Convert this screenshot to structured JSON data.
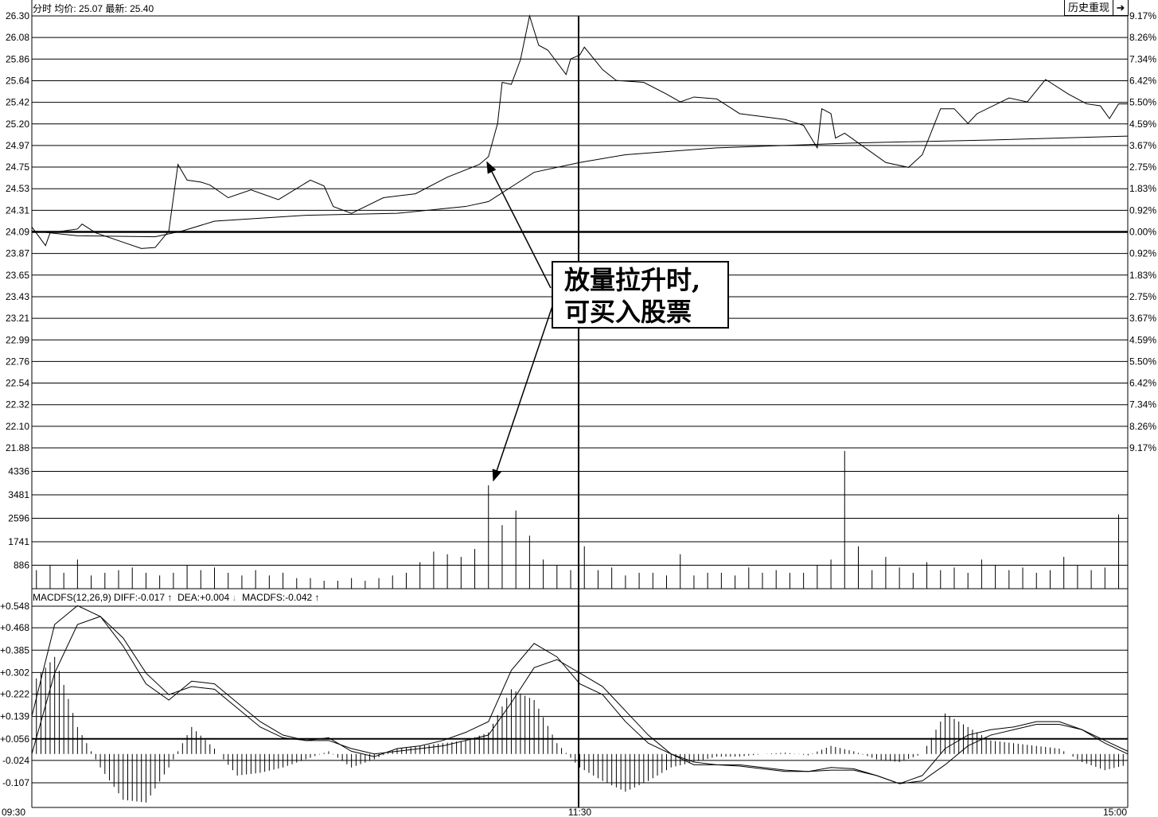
{
  "header": {
    "mode": "分时",
    "avg_label": "均价:",
    "avg_value": "25.07",
    "last_label": "最新:",
    "last_value": "25.40"
  },
  "buttons": {
    "history_replay": "历史重现",
    "exit_icon": "arrow-right-to-bar-icon"
  },
  "macd_header": {
    "name": "MACDFS(12,26,9)",
    "diff_label": "DIFF:",
    "diff_value": "-0.017",
    "diff_arrow": "↑",
    "dea_label": "DEA:",
    "dea_value": "+0.004",
    "dea_arrow": "↓",
    "macdfs_label": "MACDFS:",
    "macdfs_value": "-0.042",
    "macdfs_arrow": "↑"
  },
  "annotation": {
    "line1": "放量拉升时,",
    "line2": "可买入股票"
  },
  "chart_data": [
    {
      "type": "line",
      "panel": "price",
      "prev_close": 24.09,
      "ylim": [
        21.88,
        26.3
      ],
      "y_ticks": [
        "26.30",
        "26.08",
        "25.86",
        "25.64",
        "25.42",
        "25.20",
        "24.97",
        "24.75",
        "24.53",
        "24.31",
        "24.09",
        "23.87",
        "23.65",
        "23.43",
        "23.21",
        "22.99",
        "22.76",
        "22.54",
        "22.32",
        "22.10",
        "21.88"
      ],
      "pct_ticks": [
        "9.17%",
        "8.26%",
        "7.34%",
        "6.42%",
        "5.50%",
        "4.59%",
        "3.67%",
        "2.75%",
        "1.83%",
        "0.92%",
        "0.00%",
        "0.92%",
        "1.83%",
        "2.75%",
        "3.67%",
        "4.59%",
        "5.50%",
        "6.42%",
        "7.34%",
        "8.26%",
        "9.17%"
      ],
      "x_ticks": [
        "09:30",
        "11:30",
        "15:00"
      ],
      "price": [
        [
          "09:30",
          24.14
        ],
        [
          "09:33",
          23.95
        ],
        [
          "09:34",
          24.08
        ],
        [
          "09:40",
          24.12
        ],
        [
          "09:41",
          24.17
        ],
        [
          "09:44",
          24.08
        ],
        [
          "09:49",
          24.0
        ],
        [
          "09:54",
          23.92
        ],
        [
          "09:57",
          23.93
        ],
        [
          "10:00",
          24.1
        ],
        [
          "10:02",
          24.78
        ],
        [
          "10:04",
          24.62
        ],
        [
          "10:07",
          24.6
        ],
        [
          "10:09",
          24.57
        ],
        [
          "10:13",
          24.44
        ],
        [
          "10:18",
          24.52
        ],
        [
          "10:24",
          24.42
        ],
        [
          "10:31",
          24.62
        ],
        [
          "10:34",
          24.56
        ],
        [
          "10:36",
          24.35
        ],
        [
          "10:40",
          24.28
        ],
        [
          "10:47",
          24.44
        ],
        [
          "10:54",
          24.48
        ],
        [
          "11:01",
          24.65
        ],
        [
          "11:08",
          24.78
        ],
        [
          "11:10",
          24.86
        ],
        [
          "11:12",
          25.2
        ],
        [
          "11:13",
          25.62
        ],
        [
          "11:15",
          25.6
        ],
        [
          "11:17",
          25.85
        ],
        [
          "11:19",
          26.3
        ],
        [
          "11:21",
          26.0
        ],
        [
          "11:23",
          25.95
        ],
        [
          "11:27",
          25.7
        ],
        [
          "11:28",
          25.86
        ],
        [
          "11:30",
          25.9
        ],
        [
          "13:01",
          25.98
        ],
        [
          "13:05",
          25.75
        ],
        [
          "13:08",
          25.64
        ],
        [
          "13:14",
          25.62
        ],
        [
          "13:19",
          25.5
        ],
        [
          "13:22",
          25.42
        ],
        [
          "13:25",
          25.47
        ],
        [
          "13:30",
          25.45
        ],
        [
          "13:35",
          25.3
        ],
        [
          "13:45",
          25.24
        ],
        [
          "13:49",
          25.18
        ],
        [
          "13:52",
          24.95
        ],
        [
          "13:53",
          25.35
        ],
        [
          "13:55",
          25.3
        ],
        [
          "13:56",
          25.05
        ],
        [
          "13:58",
          25.1
        ],
        [
          "14:01",
          25.0
        ],
        [
          "14:07",
          24.8
        ],
        [
          "14:12",
          24.75
        ],
        [
          "14:15",
          24.88
        ],
        [
          "14:19",
          25.35
        ],
        [
          "14:22",
          25.35
        ],
        [
          "14:25",
          25.2
        ],
        [
          "14:27",
          25.3
        ],
        [
          "14:34",
          25.46
        ],
        [
          "14:38",
          25.42
        ],
        [
          "14:42",
          25.65
        ],
        [
          "14:47",
          25.5
        ],
        [
          "14:51",
          25.4
        ],
        [
          "14:54",
          25.38
        ],
        [
          "14:56",
          25.25
        ],
        [
          "14:58",
          25.4
        ],
        [
          "15:00",
          25.4
        ]
      ],
      "avg_price": [
        [
          "09:30",
          24.1
        ],
        [
          "09:40",
          24.05
        ],
        [
          "09:57",
          24.04
        ],
        [
          "10:03",
          24.1
        ],
        [
          "10:10",
          24.2
        ],
        [
          "10:30",
          24.26
        ],
        [
          "10:50",
          24.28
        ],
        [
          "11:05",
          24.35
        ],
        [
          "11:10",
          24.4
        ],
        [
          "11:15",
          24.55
        ],
        [
          "11:20",
          24.7
        ],
        [
          "11:30",
          24.8
        ],
        [
          "13:10",
          24.88
        ],
        [
          "13:30",
          24.95
        ],
        [
          "14:00",
          25.0
        ],
        [
          "14:30",
          25.03
        ],
        [
          "15:00",
          25.07
        ]
      ]
    },
    {
      "type": "bar",
      "panel": "volume",
      "y_ticks": [
        4336,
        3481,
        2596,
        1741,
        886
      ],
      "interval_minutes": 3,
      "morning": [
        700,
        900,
        600,
        1100,
        500,
        600,
        700,
        800,
        600,
        500,
        600,
        900,
        700,
        800,
        600,
        500,
        700,
        500,
        600,
        400,
        400,
        300,
        300,
        400,
        300,
        400,
        500,
        600,
        1000,
        1400,
        1300,
        1200,
        1500,
        3900,
        2400,
        2950,
        2000,
        1100,
        900,
        700
      ],
      "afternoon": [
        1600,
        700,
        800,
        500,
        600,
        600,
        500,
        1300,
        500,
        600,
        600,
        500,
        800,
        600,
        700,
        600,
        600,
        900,
        1100,
        5200,
        1600,
        700,
        1200,
        800,
        600,
        1000,
        700,
        800,
        600,
        1100,
        900,
        700,
        800,
        600,
        700,
        1200,
        900,
        700,
        800,
        2800
      ]
    },
    {
      "type": "line",
      "panel": "macd",
      "y_ticks": [
        "+0.548",
        "+0.468",
        "+0.385",
        "+0.302",
        "+0.222",
        "+0.139",
        "+0.056",
        "-0.024",
        "-0.107"
      ],
      "times": [
        "09:30",
        "09:35",
        "09:40",
        "09:45",
        "09:50",
        "09:55",
        "10:00",
        "10:05",
        "10:10",
        "10:15",
        "10:20",
        "10:25",
        "10:30",
        "10:35",
        "10:40",
        "10:45",
        "10:50",
        "10:55",
        "11:00",
        "11:05",
        "11:10",
        "11:15",
        "11:20",
        "11:25",
        "11:30",
        "13:05",
        "13:10",
        "13:15",
        "13:20",
        "13:25",
        "13:30",
        "13:35",
        "13:40",
        "13:45",
        "13:50",
        "13:55",
        "14:00",
        "14:05",
        "14:10",
        "14:15",
        "14:20",
        "14:25",
        "14:30",
        "14:35",
        "14:40",
        "14:45",
        "14:50",
        "14:55",
        "15:00"
      ],
      "diff": [
        0.14,
        0.48,
        0.55,
        0.51,
        0.4,
        0.26,
        0.2,
        0.27,
        0.26,
        0.19,
        0.12,
        0.07,
        0.05,
        0.06,
        0.01,
        -0.01,
        0.02,
        0.03,
        0.05,
        0.08,
        0.12,
        0.31,
        0.41,
        0.36,
        0.26,
        0.22,
        0.12,
        0.04,
        0.0,
        -0.04,
        -0.04,
        -0.04,
        -0.05,
        -0.06,
        -0.065,
        -0.05,
        -0.055,
        -0.08,
        -0.11,
        -0.08,
        0.02,
        0.07,
        0.09,
        0.1,
        0.12,
        0.12,
        0.09,
        0.04,
        0.0
      ],
      "dea": [
        0.0,
        0.3,
        0.48,
        0.51,
        0.43,
        0.3,
        0.22,
        0.25,
        0.24,
        0.17,
        0.1,
        0.06,
        0.05,
        0.05,
        0.02,
        0.0,
        0.01,
        0.02,
        0.03,
        0.05,
        0.07,
        0.19,
        0.32,
        0.35,
        0.3,
        0.25,
        0.16,
        0.07,
        0.0,
        -0.03,
        -0.04,
        -0.045,
        -0.055,
        -0.065,
        -0.065,
        -0.06,
        -0.06,
        -0.08,
        -0.11,
        -0.1,
        -0.04,
        0.03,
        0.07,
        0.09,
        0.11,
        0.11,
        0.09,
        0.05,
        0.01
      ],
      "macdfs": [
        0.26,
        0.36,
        0.1,
        -0.05,
        -0.17,
        -0.18,
        -0.05,
        0.1,
        0.02,
        -0.08,
        -0.07,
        -0.05,
        -0.02,
        0.01,
        -0.05,
        -0.02,
        0.02,
        0.03,
        0.04,
        0.05,
        0.08,
        0.24,
        0.2,
        0.04,
        -0.05,
        -0.1,
        -0.14,
        -0.1,
        -0.05,
        -0.03,
        -0.01,
        -0.01,
        0.0,
        0.005,
        -0.005,
        0.03,
        0.01,
        -0.02,
        -0.03,
        0.0,
        0.15,
        0.1,
        0.05,
        0.04,
        0.03,
        0.02,
        -0.03,
        -0.06,
        -0.04
      ]
    }
  ]
}
